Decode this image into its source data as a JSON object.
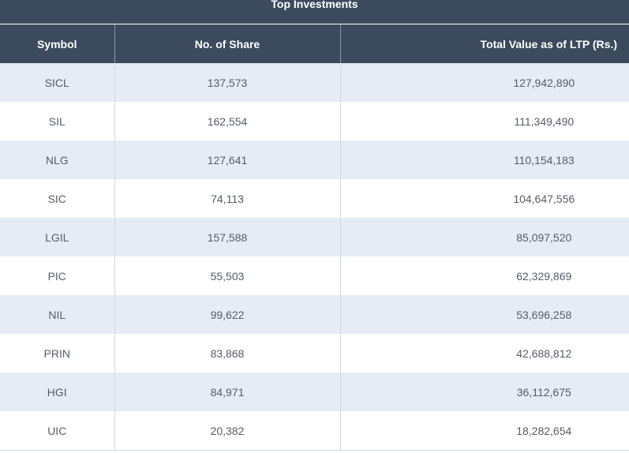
{
  "title": "Top Investments",
  "columns": {
    "symbol": "Symbol",
    "shares": "No. of Share",
    "total": "Total Value as of LTP (Rs.)"
  },
  "rows": [
    {
      "symbol": "SICL",
      "shares": "137,573",
      "total": "127,942,890"
    },
    {
      "symbol": "SIL",
      "shares": "162,554",
      "total": "111,349,490"
    },
    {
      "symbol": "NLG",
      "shares": "127,641",
      "total": "110,154,183"
    },
    {
      "symbol": "SIC",
      "shares": "74,113",
      "total": "104,647,556"
    },
    {
      "symbol": "LGIL",
      "shares": "157,588",
      "total": "85,097,520"
    },
    {
      "symbol": "PIC",
      "shares": "55,503",
      "total": "62,329,869"
    },
    {
      "symbol": "NIL",
      "shares": "99,622",
      "total": "53,696,258"
    },
    {
      "symbol": "PRIN",
      "shares": "83,868",
      "total": "42,688,812"
    },
    {
      "symbol": "HGI",
      "shares": "84,971",
      "total": "36,112,675"
    },
    {
      "symbol": "UIC",
      "shares": "20,382",
      "total": "18,282,654"
    }
  ],
  "colors": {
    "header_bg": "#3c4a5e",
    "row_alt_bg": "#e6ecf5",
    "text": "#555d68"
  }
}
